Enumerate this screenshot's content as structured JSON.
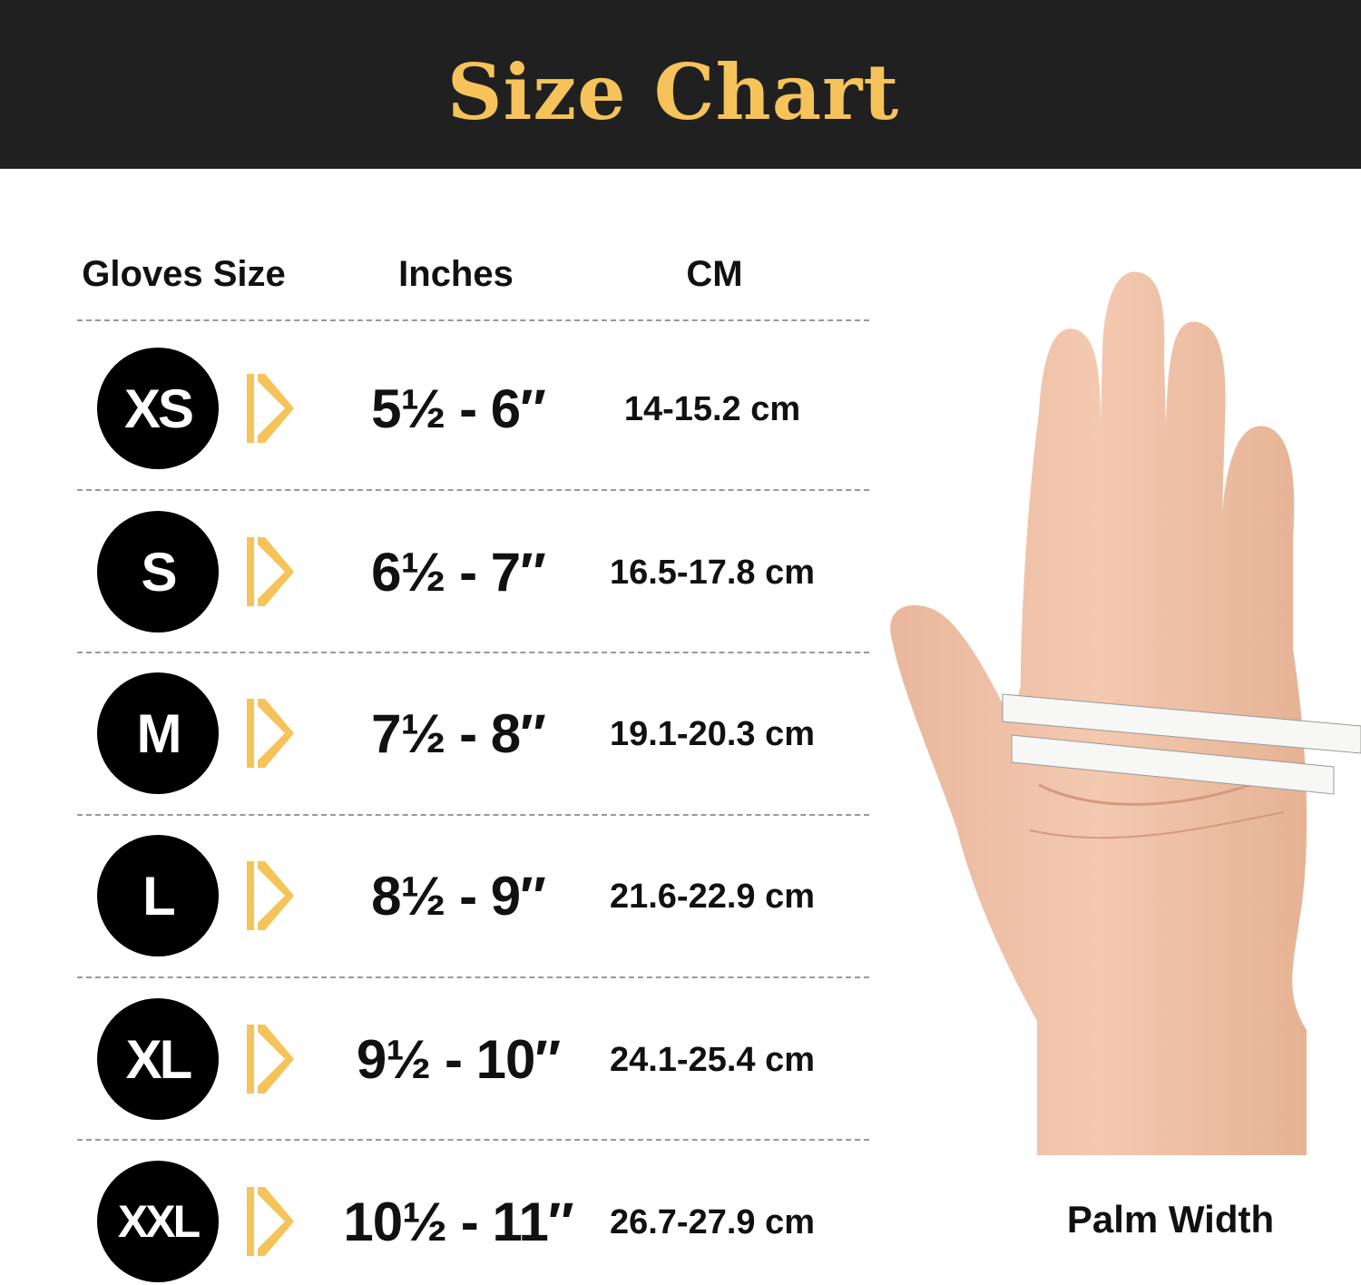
{
  "header": {
    "title": "Size Chart"
  },
  "table": {
    "columns": [
      "Gloves Size",
      "Inches",
      "CM"
    ],
    "rows": [
      {
        "size": "XS",
        "inches": "5½ - 6″",
        "cm": "14-15.2 cm"
      },
      {
        "size": "S",
        "inches": "6½ - 7″",
        "cm": "16.5-17.8 cm"
      },
      {
        "size": "M",
        "inches": "7½ - 8″",
        "cm": "19.1-20.3 cm"
      },
      {
        "size": "L",
        "inches": "8½ - 9″",
        "cm": "21.6-22.9 cm"
      },
      {
        "size": "XL",
        "inches": "9½ - 10″",
        "cm": "24.1-25.4 cm"
      },
      {
        "size": "XXL",
        "inches": "10½ - 11″",
        "cm": "26.7-27.9 cm"
      }
    ]
  },
  "illustration": {
    "caption": "Palm Width"
  },
  "colors": {
    "header_bg": "#202020",
    "accent": "#f5c35a",
    "badge": "#000000"
  }
}
